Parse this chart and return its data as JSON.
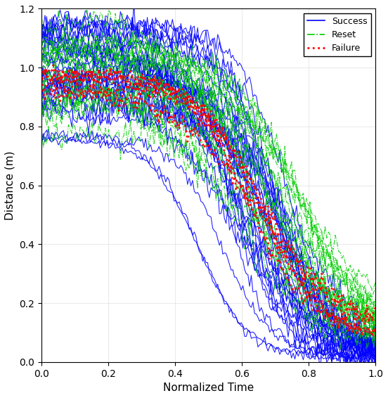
{
  "title": "",
  "xlabel": "Normalized Time",
  "ylabel": "Distance (m)",
  "xlim": [
    0,
    1
  ],
  "ylim": [
    0,
    1.2
  ],
  "xticks": [
    0,
    0.2,
    0.4,
    0.6,
    0.8,
    1.0
  ],
  "yticks": [
    0,
    0.2,
    0.4,
    0.6,
    0.8,
    1.0,
    1.2
  ],
  "success_color": "#0000FF",
  "reset_color": "#00CC00",
  "failure_color": "#FF0000",
  "background_color": "#FFFFFF",
  "legend_labels": [
    "Success",
    "Reset",
    "Failure"
  ],
  "n_success": 30,
  "n_reset": 20,
  "n_failure": 5
}
